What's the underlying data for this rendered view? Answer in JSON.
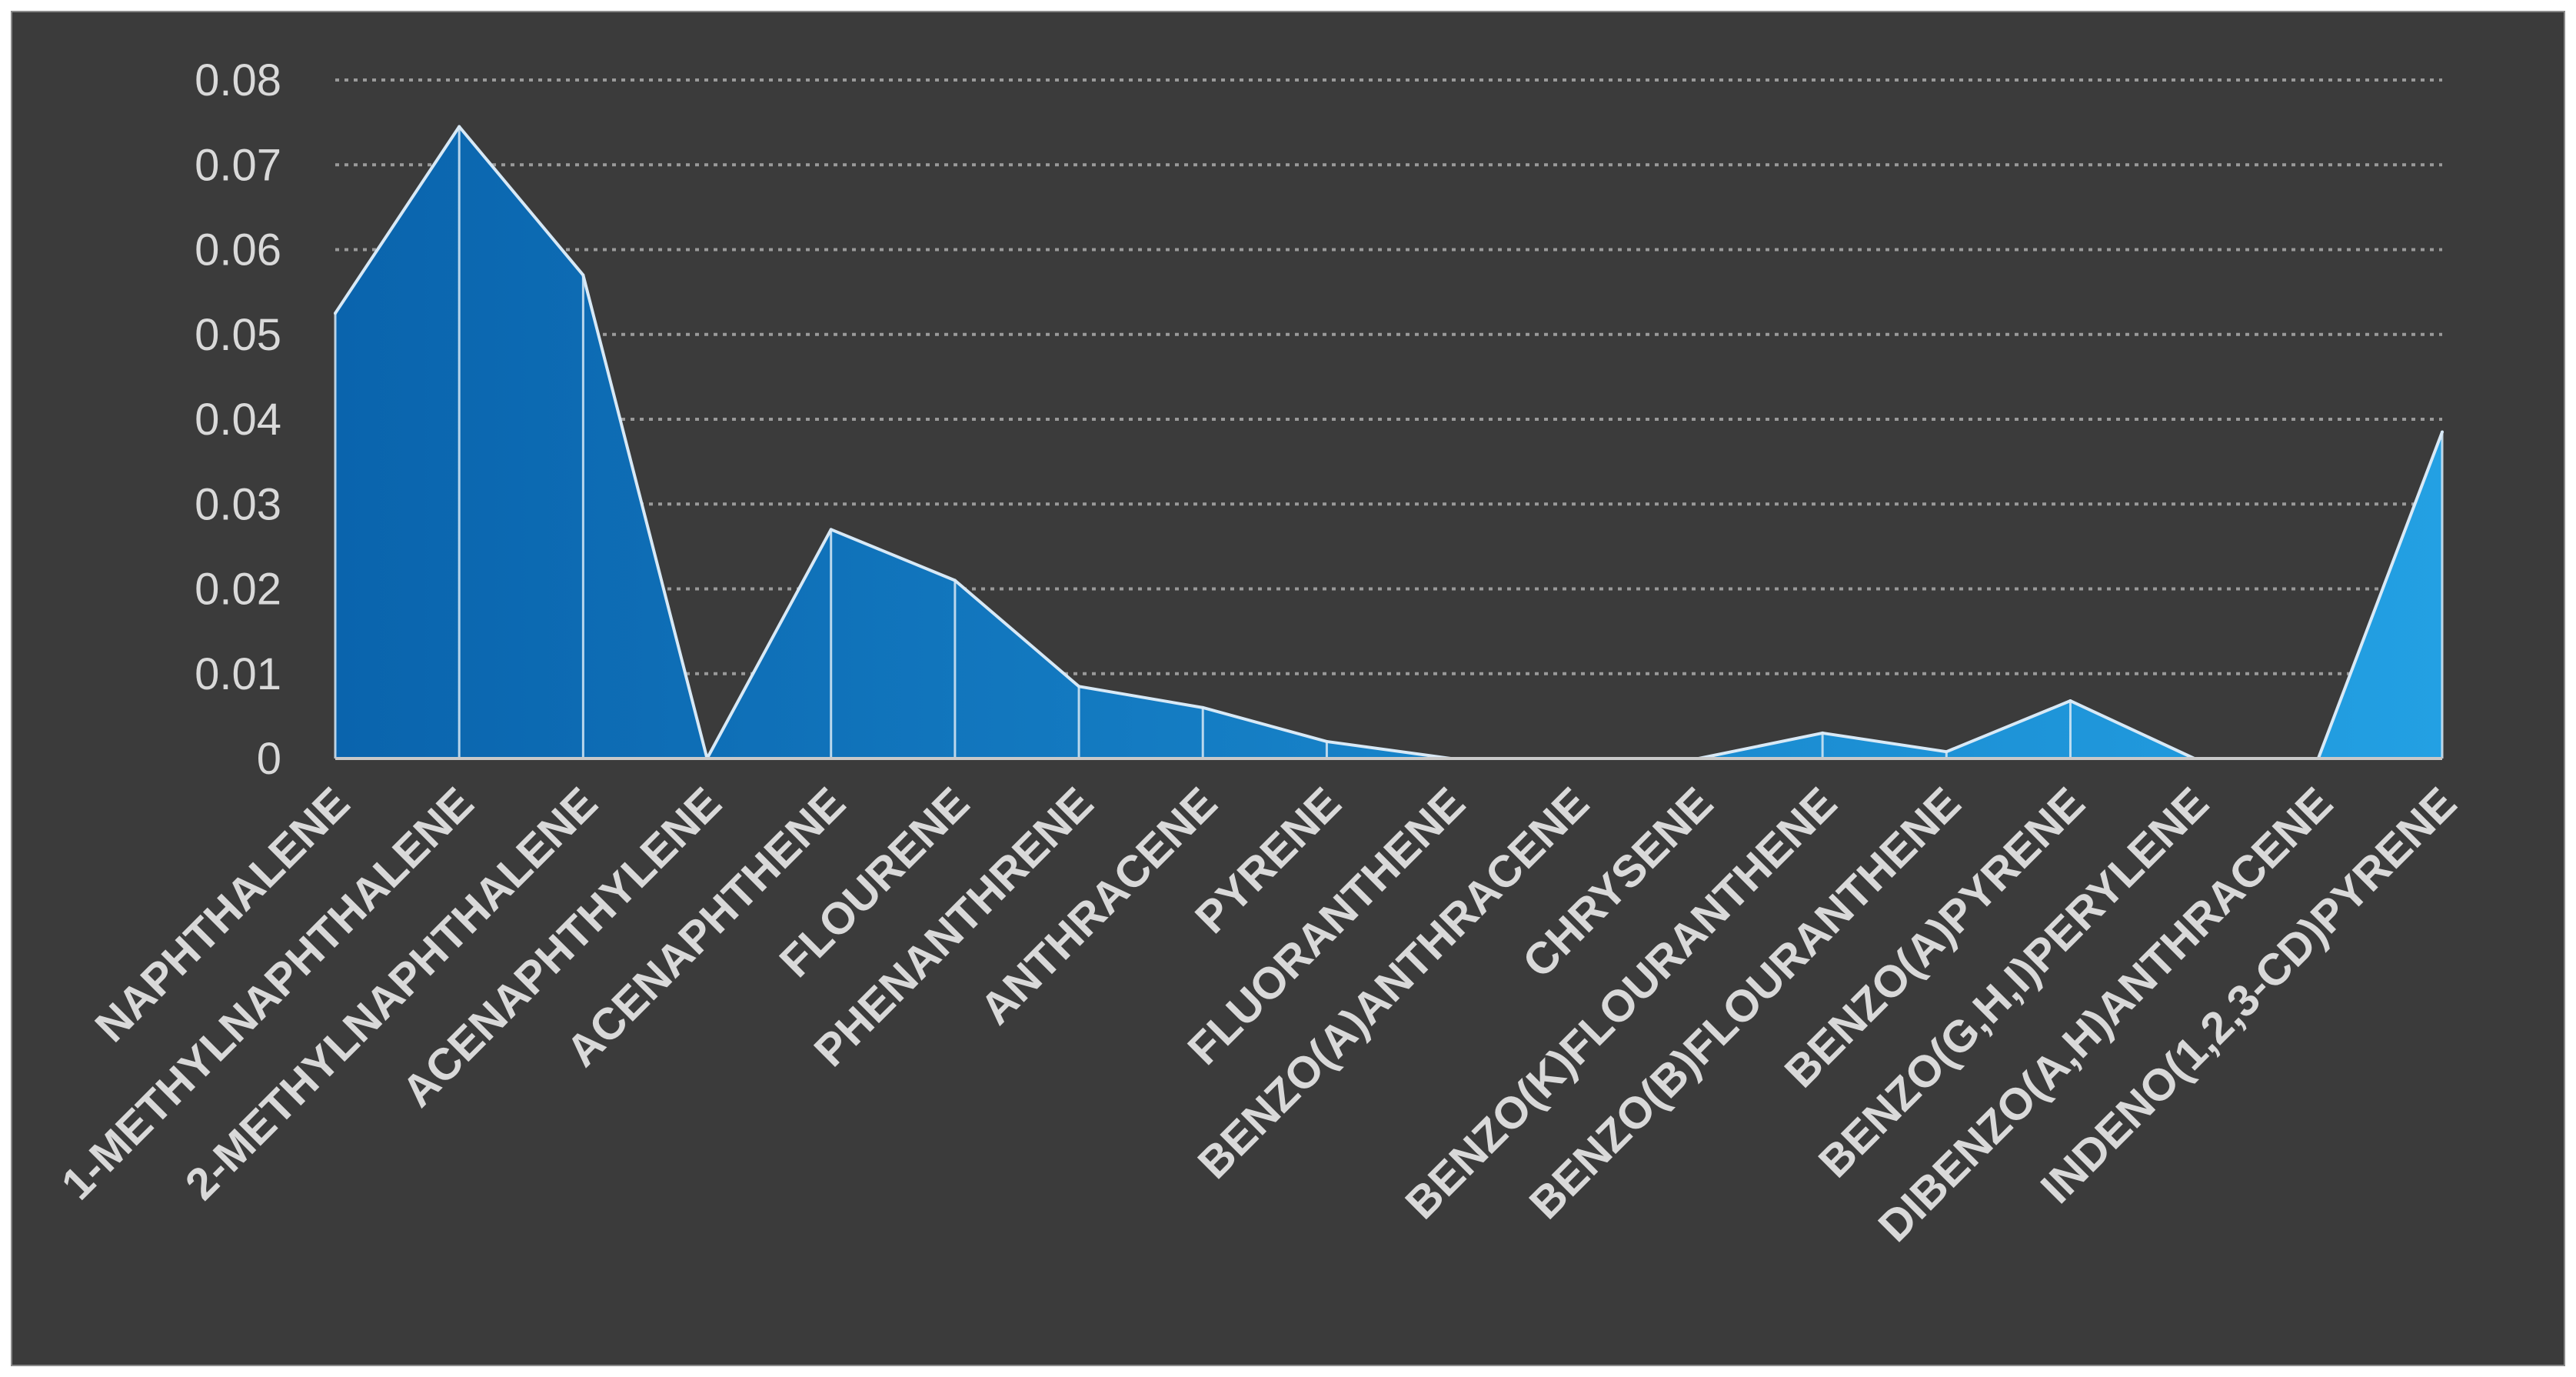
{
  "chart_data": {
    "type": "area",
    "title": "",
    "xlabel": "",
    "ylabel": "",
    "ylim": [
      0,
      0.08
    ],
    "yticks": [
      0,
      0.01,
      0.02,
      0.03,
      0.04,
      0.05,
      0.06,
      0.07,
      0.08
    ],
    "ytick_labels": [
      "0",
      "0.01",
      "0.02",
      "0.03",
      "0.04",
      "0.05",
      "0.06",
      "0.07",
      "0.08"
    ],
    "grid": true,
    "categories": [
      "NAPHTHALENE",
      "1-METHYLNAPHTHALENE",
      "2-METHYLNAPHTHALENE",
      "ACENAPHTHYLENE",
      "ACENAPHTHENE",
      "FLOURENE",
      "PHENANTHRENE",
      "ANTHRACENE",
      "PYRENE",
      "FLUORANTHENE",
      "BENZO(A)ANTHRACENE",
      "CHRYSENE",
      "BENZO(K)FLOURANTHENE",
      "BENZO(B)FLOURANTHENE",
      "BENZO(A)PYRENE",
      "BENZO(G,H,I)PERYLENE",
      "DIBENZO(A,H)ANTHRACENE",
      "INDENO(1,2,3-CD)PYRENE"
    ],
    "values": [
      0.0525,
      0.0745,
      0.057,
      0.0,
      0.027,
      0.021,
      0.0085,
      0.006,
      0.002,
      0.0,
      0.0,
      0.0,
      0.003,
      0.0008,
      0.0068,
      0.0,
      0.0,
      0.0385
    ],
    "colors": {
      "fill_start": "#0a64ad",
      "fill_end": "#23a0e3",
      "line": "#d8e9f6",
      "background": "#3b3b3b",
      "text": "#d9d9d9"
    }
  }
}
